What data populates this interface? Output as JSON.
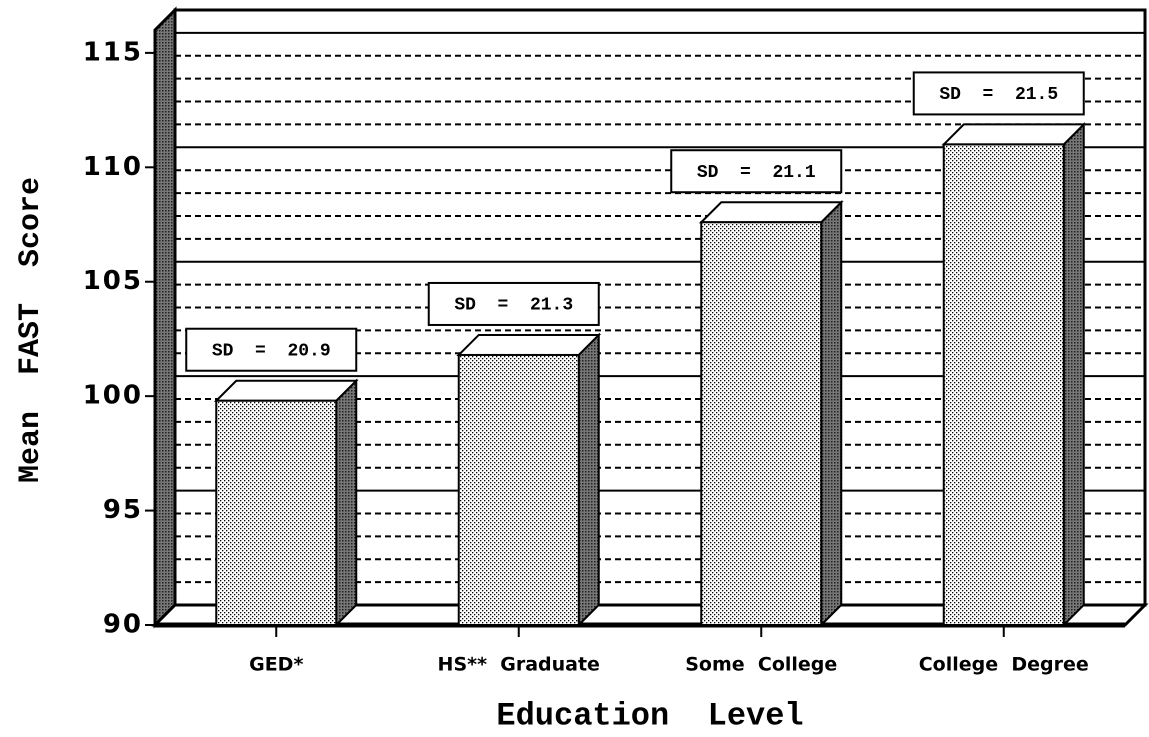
{
  "chart_data": {
    "type": "bar3d",
    "categories": [
      "GED*",
      "HS**  Graduate",
      "Some  College",
      "College  Degree"
    ],
    "values": [
      99.8,
      101.8,
      107.6,
      111.0
    ],
    "annotations": [
      "SD  =  20.9",
      "SD  =  21.3",
      "SD  =  21.1",
      "SD  =  21.5"
    ],
    "x_label": "Education  Level",
    "y_label": "Mean  FAST  Score",
    "ylim": [
      90,
      116
    ],
    "yticks": [
      90,
      95,
      100,
      105,
      110,
      115
    ],
    "minor_yticks": [
      91,
      92,
      93,
      94,
      96,
      97,
      98,
      99,
      101,
      102,
      103,
      104,
      106,
      107,
      108,
      109,
      111,
      112,
      113,
      114
    ],
    "grid": true
  }
}
